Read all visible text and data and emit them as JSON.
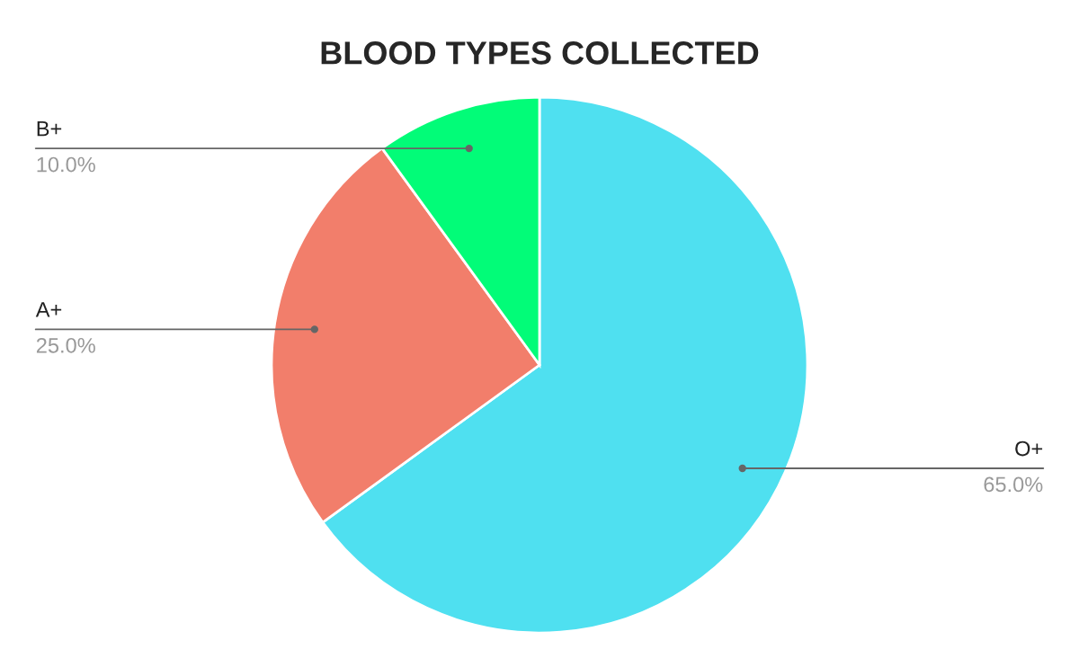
{
  "chart_data": {
    "type": "pie",
    "title": "BLOOD TYPES COLLECTED",
    "categories": [
      "O+",
      "A+",
      "B+"
    ],
    "values": [
      65,
      25,
      10
    ],
    "colors": [
      "#4fe0f0",
      "#f27e6b",
      "#02fc78"
    ],
    "value_labels": [
      "65.0%",
      "25.0%",
      "10.0%"
    ]
  }
}
